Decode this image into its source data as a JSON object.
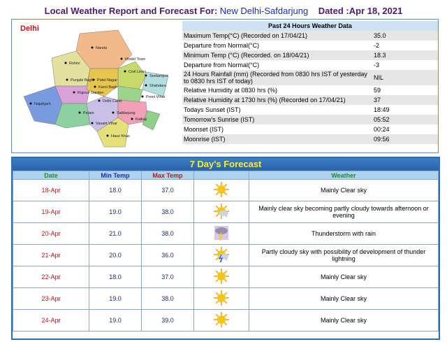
{
  "header": {
    "title_prefix": "Local Weather Report and Forecast For:",
    "station": "New Delhi-Safdarjung",
    "dated": "Dated :Apr 18, 2021"
  },
  "map": {
    "title": "Delhi",
    "labels": [
      "Narela",
      "Rohini",
      "Model Town",
      "Civil Lines",
      "Seelampur",
      "Shahdara",
      "Punjabi Bagh",
      "Patel Nagar",
      "Karol Bagh",
      "Preet Vihar",
      "Najafgarh",
      "Rajouri Garden",
      "Delhi Cantt",
      "Palam",
      "Vasant Vihar",
      "Safdarjung",
      "Kalkaji",
      "Hauz Khas"
    ]
  },
  "past24": {
    "title": "Past 24 Hours Weather Data",
    "rows": [
      [
        "Maximum Temp(°C) (Recorded on 17/04/21)",
        "35.0"
      ],
      [
        "Departure from Normal(°C)",
        "-2"
      ],
      [
        "Minimum Temp (°C) (Recorded. on 18/04/21)",
        "18.3"
      ],
      [
        "Departure from Normal(°C)",
        "-3"
      ],
      [
        "24 Hours Rainfall (mm) (Recorded from 0830 hrs IST of yesterday to 0830 hrs IST of today)",
        "NIL"
      ],
      [
        "Relative Humidity at 0830 hrs (%)",
        "59"
      ],
      [
        "Relative Humidity at 1730 hrs (%) (Recorded on 17/04/21)",
        "37"
      ],
      [
        "Todays Sunset (IST)",
        "18:49"
      ],
      [
        "Tomorrow's Sunrise (IST)",
        "05:52"
      ],
      [
        "Moonset (IST)",
        "00:24"
      ],
      [
        "Moonrise (IST)",
        "09:56"
      ]
    ]
  },
  "forecast": {
    "title": "7 Day's Forecast",
    "columns": [
      "Date",
      "Min Temp",
      "Max Temp",
      "Weather"
    ],
    "rows": [
      [
        "18-Apr",
        "18.0",
        "37.0",
        "Mainly Clear sky"
      ],
      [
        "19-Apr",
        "19.0",
        "38.0",
        "Mainly clear sky becoming partly cloudy towards afternoon or evening"
      ],
      [
        "20-Apr",
        "21.0",
        "38.0",
        "Thunderstorm with rain"
      ],
      [
        "21-Apr",
        "20.0",
        "36.0",
        "Partly cloudy sky with possibility of development of thunder lightning"
      ],
      [
        "22-Apr",
        "18.0",
        "37.0",
        "Mainly Clear sky"
      ],
      [
        "23-Apr",
        "19.0",
        "38.0",
        "Mainly Clear sky"
      ],
      [
        "24-Apr",
        "19.0",
        "39.0",
        "Mainly Clear sky"
      ]
    ]
  }
}
